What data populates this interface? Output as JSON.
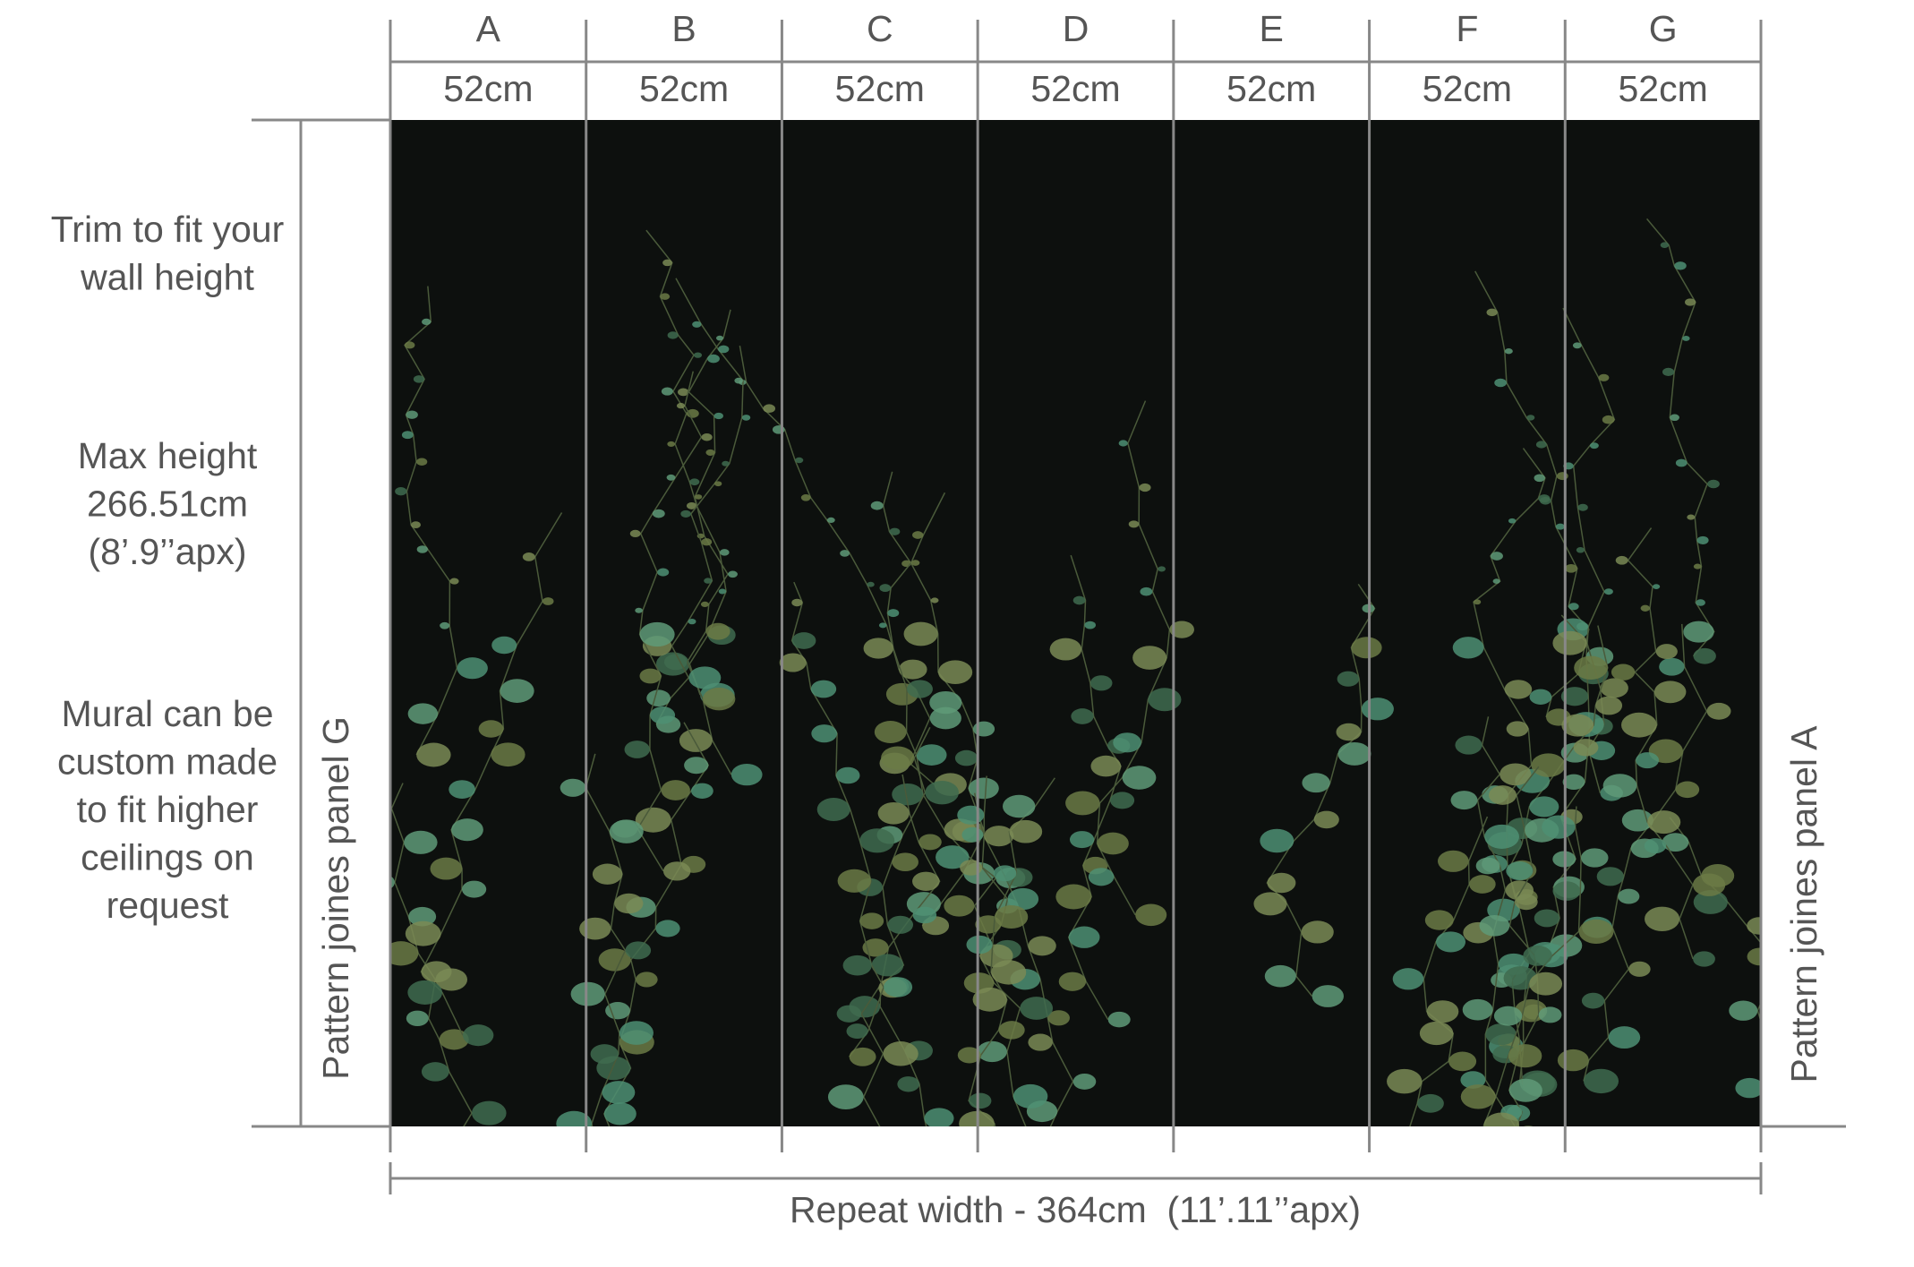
{
  "panels": [
    {
      "label": "A",
      "width": "52cm"
    },
    {
      "label": "B",
      "width": "52cm"
    },
    {
      "label": "C",
      "width": "52cm"
    },
    {
      "label": "D",
      "width": "52cm"
    },
    {
      "label": "E",
      "width": "52cm"
    },
    {
      "label": "F",
      "width": "52cm"
    },
    {
      "label": "G",
      "width": "52cm"
    }
  ],
  "notes": [
    {
      "lines": [
        "Trim to fit your",
        "wall height"
      ]
    },
    {
      "lines": [
        "Max height",
        "266.51cm",
        "(8’.9’’apx)"
      ]
    },
    {
      "lines": [
        "Mural can be",
        "custom made",
        "to fit higher",
        "ceilings on",
        "request"
      ]
    }
  ],
  "left_side": "Pattern joines panel G",
  "right_side": "Pattern joines panel A",
  "repeat_width": "Repeat width - 364cm  (11’.11’’apx)"
}
